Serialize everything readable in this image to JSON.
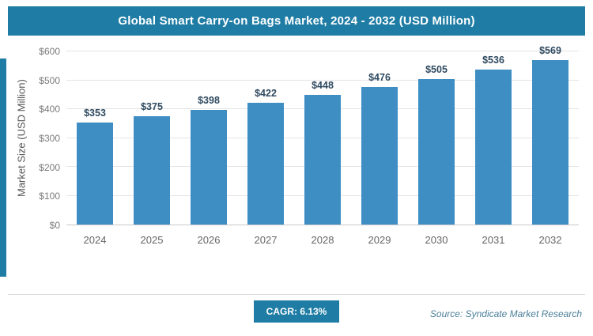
{
  "header": {
    "title": "Global Smart Carry-on Bags Market, 2024 - 2032 (USD Million)"
  },
  "chart_data": {
    "type": "bar",
    "title": "Global Smart Carry-on Bags Market, 2024 - 2032 (USD Million)",
    "categories": [
      "2024",
      "2025",
      "2026",
      "2027",
      "2028",
      "2029",
      "2030",
      "2031",
      "2032"
    ],
    "values": [
      353,
      375,
      398,
      422,
      448,
      476,
      505,
      536,
      569
    ],
    "value_labels": [
      "$353",
      "$375",
      "$398",
      "$422",
      "$448",
      "$476",
      "$505",
      "$536",
      "$569"
    ],
    "xlabel": "",
    "ylabel": "Market Size (USD Million)",
    "ylim": [
      0,
      600
    ],
    "yticks": [
      0,
      100,
      200,
      300,
      400,
      500,
      600
    ],
    "ytick_labels": [
      "$0",
      "$100",
      "$200",
      "$300",
      "$400",
      "$500",
      "$600"
    ],
    "grid": true,
    "legend": false
  },
  "footer": {
    "cagr_label": "CAGR: 6.13%",
    "source": "Source: Syndicate Market Research"
  },
  "colors": {
    "teal": "#1f7da5",
    "bar": "#3e8ec4",
    "value_label": "#2f4a60",
    "tick": "#7a7a7a",
    "grid": "#e4e4e4",
    "source": "#4a7f99"
  }
}
